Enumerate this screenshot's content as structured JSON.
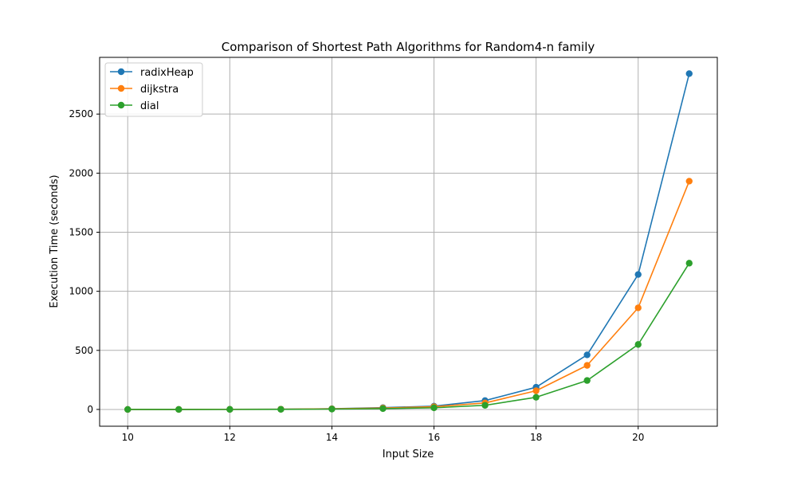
{
  "chart_data": {
    "type": "line",
    "title": "Comparison of Shortest Path Algorithms for Random4-n family",
    "xlabel": "Input Size",
    "ylabel": "Execution Time (seconds)",
    "x": [
      10,
      11,
      12,
      13,
      14,
      15,
      16,
      17,
      18,
      19,
      20,
      21
    ],
    "xlim": [
      9.45,
      21.55
    ],
    "ylim": [
      -142,
      2980
    ],
    "xticks": [
      10,
      12,
      14,
      16,
      18,
      20
    ],
    "yticks": [
      0,
      500,
      1000,
      1500,
      2000,
      2500
    ],
    "grid": true,
    "legend_position": "top-left",
    "series": [
      {
        "name": "radixHeap",
        "color": "#1f77b4",
        "values": [
          0.1,
          0.3,
          0.8,
          2,
          6,
          15,
          28,
          75,
          188,
          462,
          1142,
          2842
        ]
      },
      {
        "name": "dijkstra",
        "color": "#ff7f0e",
        "values": [
          0.1,
          0.3,
          0.8,
          2,
          5,
          12,
          23,
          55,
          158,
          373,
          860,
          1932
        ]
      },
      {
        "name": "dial",
        "color": "#2ca02c",
        "values": [
          0.1,
          0.2,
          0.5,
          1,
          3,
          7,
          14,
          35,
          103,
          245,
          550,
          1238
        ]
      }
    ]
  }
}
